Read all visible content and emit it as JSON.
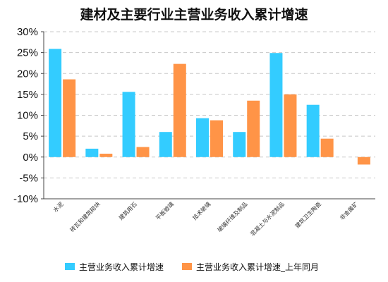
{
  "chart_data": {
    "type": "bar",
    "title": "建材及主要行业主营业务收入累计增速",
    "categories": [
      "水泥",
      "砖瓦和建筑砌块",
      "建筑用石",
      "平板玻璃",
      "技术玻璃",
      "玻璃纤维及制品",
      "混凝土与水泥制品",
      "建筑卫生陶瓷",
      "非金属矿"
    ],
    "series": [
      {
        "name": "主营业务收入累计增速",
        "color": "#33CCFF",
        "values": [
          25.9,
          2.0,
          15.6,
          6.0,
          9.3,
          6.0,
          24.9,
          12.5,
          0
        ]
      },
      {
        "name": "主营业务收入累计增速_上年同月",
        "color": "#FF9447",
        "values": [
          18.6,
          0.8,
          2.4,
          22.3,
          8.8,
          13.5,
          15.0,
          4.4,
          -1.8
        ]
      }
    ],
    "ylim": [
      -10,
      30
    ],
    "yticks": [
      "-10%",
      "-5%",
      "0%",
      "5%",
      "10%",
      "15%",
      "20%",
      "25%",
      "30%"
    ],
    "grid": true,
    "legend_position": "bottom"
  }
}
